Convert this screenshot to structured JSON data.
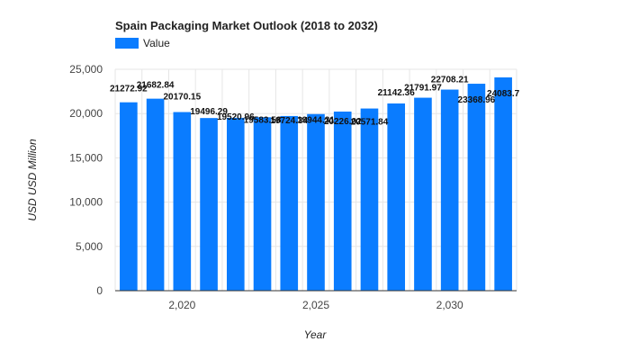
{
  "chart_data": {
    "type": "bar",
    "title": "Spain Packaging Market Outlook (2018 to 2032)",
    "xlabel": "Year",
    "ylabel": "USD USD Million",
    "legend": {
      "position": "top-left",
      "entries": [
        "Value"
      ]
    },
    "grid": true,
    "ylim": [
      0,
      25000
    ],
    "yticks": [
      0,
      5000,
      10000,
      15000,
      20000,
      25000
    ],
    "ytick_labels": [
      "0",
      "5,000",
      "10,000",
      "15,000",
      "20,000",
      "25,000"
    ],
    "xticks": [
      2020,
      2025,
      2030
    ],
    "xtick_labels": [
      "2,020",
      "2,025",
      "2,030"
    ],
    "bar_color": "#0a7cff",
    "categories": [
      2018,
      2019,
      2020,
      2021,
      2022,
      2023,
      2024,
      2025,
      2026,
      2027,
      2028,
      2029,
      2030,
      2031,
      2032
    ],
    "series": [
      {
        "name": "Value",
        "values": [
          21272.92,
          21682.84,
          20170.15,
          19496.29,
          19520.96,
          19583.58,
          19724.34,
          19944.31,
          20226.02,
          20571.84,
          21142.36,
          21791.97,
          22708.21,
          23368.96,
          24083.7
        ],
        "labels": [
          "21272.92",
          "21682.84",
          "20170.15",
          "19496.29",
          "19520.96",
          "19583.58",
          "19724.34",
          "19944.31",
          "20226.02",
          "20571.84",
          "21142.36",
          "21791.97",
          "22708.21",
          "23368.96",
          "24083.7"
        ]
      }
    ]
  }
}
